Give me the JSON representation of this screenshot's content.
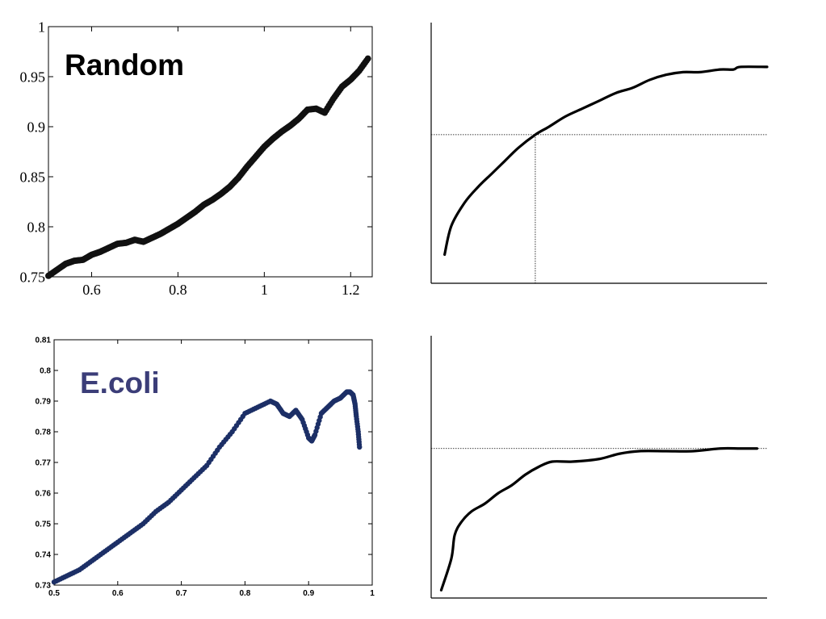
{
  "charts": {
    "random": {
      "panel_label": "Random",
      "label_color": "#000000",
      "marker_color": "#111111",
      "chart_data": {
        "type": "scatter",
        "title": "",
        "xlabel": "",
        "ylabel": "",
        "xlim": [
          0.5,
          1.25
        ],
        "ylim": [
          0.75,
          1.0
        ],
        "xticks": [
          0.6,
          0.8,
          1.0,
          1.2
        ],
        "xtick_labels": [
          "0.6",
          "0.8",
          "1",
          "1.2"
        ],
        "yticks": [
          0.75,
          0.8,
          0.85,
          0.9,
          0.95,
          1.0
        ],
        "ytick_labels": [
          "0.75",
          "0.8",
          "0.85",
          "0.9",
          "0.95",
          "1"
        ],
        "grid": false,
        "x": [
          0.5,
          0.52,
          0.54,
          0.56,
          0.58,
          0.6,
          0.62,
          0.64,
          0.66,
          0.68,
          0.7,
          0.72,
          0.74,
          0.76,
          0.78,
          0.8,
          0.82,
          0.84,
          0.86,
          0.88,
          0.9,
          0.92,
          0.94,
          0.96,
          0.98,
          1.0,
          1.02,
          1.04,
          1.06,
          1.08,
          1.1,
          1.12,
          1.14,
          1.16,
          1.18,
          1.2,
          1.22,
          1.24
        ],
        "y": [
          0.751,
          0.757,
          0.763,
          0.766,
          0.767,
          0.772,
          0.775,
          0.779,
          0.783,
          0.784,
          0.787,
          0.785,
          0.789,
          0.793,
          0.798,
          0.803,
          0.809,
          0.815,
          0.822,
          0.827,
          0.833,
          0.84,
          0.849,
          0.86,
          0.87,
          0.88,
          0.888,
          0.895,
          0.901,
          0.908,
          0.917,
          0.918,
          0.914,
          0.928,
          0.94,
          0.947,
          0.956,
          0.968
        ]
      }
    },
    "random_sketch": {
      "chart_data": {
        "type": "line",
        "title": "",
        "xlabel": "",
        "ylabel": "",
        "xlim": [
          0,
          100
        ],
        "ylim": [
          0,
          100
        ],
        "grid": false,
        "reference_x": 31,
        "reference_y": 57,
        "x": [
          4,
          6,
          10,
          14,
          18,
          22,
          26,
          31,
          35,
          40,
          45,
          50,
          55,
          60,
          65,
          70,
          75,
          80,
          86,
          90,
          92,
          100
        ],
        "y": [
          11,
          22,
          31,
          37,
          42,
          47,
          52,
          57,
          60,
          64,
          67,
          70,
          73,
          75,
          78,
          80,
          81,
          81,
          82,
          82,
          83,
          83
        ]
      }
    },
    "ecoli": {
      "panel_label": "E.coli",
      "label_color": "#3b3d78",
      "marker_color": "#1c2f66",
      "chart_data": {
        "type": "scatter",
        "title": "",
        "xlabel": "",
        "ylabel": "",
        "xlim": [
          0.5,
          1.0
        ],
        "ylim": [
          0.73,
          0.81
        ],
        "xticks": [
          0.5,
          0.6,
          0.7,
          0.8,
          0.9,
          1.0
        ],
        "xtick_labels": [
          "0.5",
          "0.6",
          "0.7",
          "0.8",
          "0.9",
          "1"
        ],
        "yticks": [
          0.73,
          0.74,
          0.75,
          0.76,
          0.77,
          0.78,
          0.79,
          0.8,
          0.81
        ],
        "ytick_labels": [
          "0.73",
          "0.74",
          "0.75",
          "0.76",
          "0.77",
          "0.78",
          "0.79",
          "0.8",
          "0.81"
        ],
        "grid": false,
        "x": [
          0.5,
          0.52,
          0.54,
          0.56,
          0.58,
          0.6,
          0.62,
          0.64,
          0.66,
          0.68,
          0.7,
          0.72,
          0.74,
          0.76,
          0.78,
          0.8,
          0.82,
          0.84,
          0.85,
          0.86,
          0.87,
          0.88,
          0.89,
          0.9,
          0.905,
          0.91,
          0.92,
          0.93,
          0.94,
          0.95,
          0.96,
          0.965,
          0.97,
          0.973,
          0.975,
          0.978,
          0.98
        ],
        "y": [
          0.731,
          0.733,
          0.735,
          0.738,
          0.741,
          0.744,
          0.747,
          0.75,
          0.754,
          0.757,
          0.761,
          0.765,
          0.769,
          0.775,
          0.78,
          0.786,
          0.788,
          0.79,
          0.789,
          0.786,
          0.785,
          0.787,
          0.784,
          0.778,
          0.777,
          0.779,
          0.786,
          0.788,
          0.79,
          0.791,
          0.793,
          0.793,
          0.792,
          0.789,
          0.785,
          0.78,
          0.775
        ]
      }
    },
    "ecoli_sketch": {
      "chart_data": {
        "type": "line",
        "title": "",
        "xlabel": "",
        "ylabel": "",
        "xlim": [
          0,
          100
        ],
        "ylim": [
          0,
          100
        ],
        "grid": false,
        "reference_y": 57,
        "x": [
          3,
          6,
          7,
          9,
          12,
          16,
          20,
          24,
          28,
          32,
          36,
          42,
          50,
          56,
          62,
          70,
          78,
          86,
          92,
          97
        ],
        "y": [
          3,
          15,
          24,
          29,
          33,
          36,
          40,
          43,
          47,
          50,
          52,
          52,
          53,
          55,
          56,
          56,
          56,
          57,
          57,
          57
        ]
      }
    }
  }
}
